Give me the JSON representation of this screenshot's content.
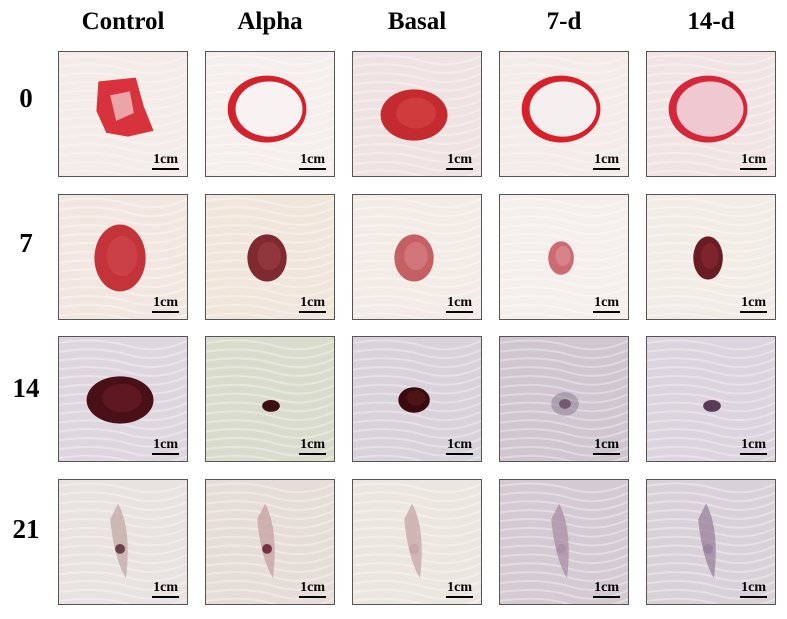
{
  "columns": [
    "Control",
    "Alpha",
    "Basal",
    "7-d",
    "14-d"
  ],
  "rows": [
    {
      "label": "0",
      "cells": [
        {
          "scale": "1cm",
          "bg": "#f3ece8",
          "wound": "#d8323c",
          "inner": "#f4d4d6",
          "shape": "irregular"
        },
        {
          "scale": "1cm",
          "bg": "#f4eeec",
          "wound": "#d2232c",
          "inner": "#f8f2f2",
          "shape": "ring"
        },
        {
          "scale": "1cm",
          "bg": "#efe2e2",
          "wound": "#c42a30",
          "inner": "#d84848",
          "shape": "solid"
        },
        {
          "scale": "1cm",
          "bg": "#f3ece8",
          "wound": "#d8202a",
          "inner": "#f4eeee",
          "shape": "ring"
        },
        {
          "scale": "1cm",
          "bg": "#f2e4e4",
          "wound": "#d4283a",
          "inner": "#f0c8d0",
          "shape": "ring"
        }
      ]
    },
    {
      "label": "7",
      "cells": [
        {
          "scale": "1cm",
          "bg": "#f2e6e0",
          "wound": "#c4323a",
          "inner": "#d04a50",
          "shape": "solid"
        },
        {
          "scale": "1cm",
          "bg": "#f0e6dc",
          "wound": "#7e2a30",
          "inner": "#a04048",
          "shape": "solid"
        },
        {
          "scale": "1cm",
          "bg": "#f3ebe6",
          "wound": "#c46062",
          "inner": "#d88488",
          "shape": "solid"
        },
        {
          "scale": "1cm",
          "bg": "#f4eeec",
          "wound": "#cc6c72",
          "inner": "#e09298",
          "shape": "solid"
        },
        {
          "scale": "1cm",
          "bg": "#f2ece6",
          "wound": "#6a1c24",
          "inner": "#8a2a34",
          "shape": "solid"
        }
      ]
    },
    {
      "label": "14",
      "cells": [
        {
          "scale": "1cm",
          "bg": "#ded6de",
          "wound": "#4a1018",
          "inner": "#6a1e26",
          "shape": "solid"
        },
        {
          "scale": "1cm",
          "bg": "#d9dccd",
          "wound": "#3a0e12",
          "inner": "#3a0e12",
          "shape": "small"
        },
        {
          "scale": "1cm",
          "bg": "#d8d2da",
          "wound": "#3a0a0e",
          "inner": "#5a1a1e",
          "shape": "solid"
        },
        {
          "scale": "1cm",
          "bg": "#cfc6cf",
          "wound": "#8a7690",
          "inner": "#8a7690",
          "shape": "faint"
        },
        {
          "scale": "1cm",
          "bg": "#dcd4de",
          "wound": "#5a3a58",
          "inner": "#5a3a58",
          "shape": "small"
        }
      ]
    },
    {
      "label": "21",
      "cells": [
        {
          "scale": "1cm",
          "bg": "#e8e2e0",
          "wound": "#c4a8a6",
          "inner": "#5a2a3a",
          "shape": "scar"
        },
        {
          "scale": "1cm",
          "bg": "#e6ddd8",
          "wound": "#c4a0a0",
          "inner": "#6a1a30",
          "shape": "scar"
        },
        {
          "scale": "1cm",
          "bg": "#ece6e0",
          "wound": "#c6a6a4",
          "inner": "#c6a6a4",
          "shape": "scar"
        },
        {
          "scale": "1cm",
          "bg": "#d4cad2",
          "wound": "#a98ea6",
          "inner": "#a98ea6",
          "shape": "scar"
        },
        {
          "scale": "1cm",
          "bg": "#d8d2d8",
          "wound": "#9a7f9e",
          "inner": "#9a7f9e",
          "shape": "scar"
        }
      ]
    }
  ]
}
